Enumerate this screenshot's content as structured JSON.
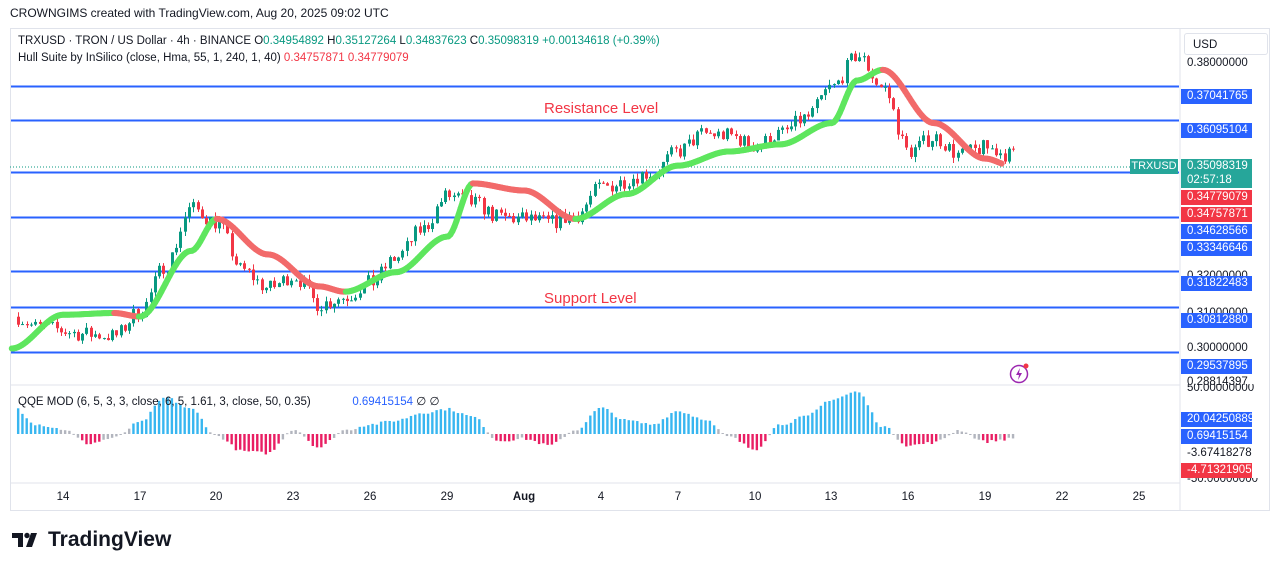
{
  "header": {
    "text": "CROWNGIMS created with TradingView.com, Aug 20, 2025 09:02 UTC"
  },
  "legend": {
    "symbol": "TRXUSD · TRON / US Dollar · 4h · BINANCE",
    "o_label": "O",
    "o": "0.34954892",
    "h_label": "H",
    "h": "0.35127264",
    "l_label": "L",
    "l": "0.34837623",
    "c_label": "C",
    "c": "0.35098319",
    "change": "+0.00134618 (+0.39%)",
    "indicator": "Hull Suite by InSilico (close, Hma, 55, 1, 240, 1, 40)",
    "ind_v1": "0.34757871",
    "ind_v2": "0.34779079",
    "qqe": "QQE MOD (6, 5, 3, 3, close, 6, 5, 1.61, 3, close, 50, 0.35)",
    "qqe_v": "0.69415154",
    "qqe_sym": "∅  ∅"
  },
  "currency": "USD",
  "annotations": {
    "resistance": "Resistance Level",
    "support": "Support Level"
  },
  "symbol_tag": "TRXUSD",
  "colors": {
    "bull": "#089981",
    "bear": "#f23645",
    "level": "#2962ff",
    "hull_up": "#5ee65e",
    "hull_down": "#f26a6a",
    "qqe_blue": "#38b6f0",
    "qqe_grey": "#b2b5be",
    "qqe_pink": "#e91e63"
  },
  "axis": {
    "scale_labels": [
      "0.38000000",
      "0.30000000"
    ],
    "partial_labels": [
      "0.32000000",
      "0.31000000",
      "0.28814397"
    ],
    "level_tags": [
      "0.37041765",
      "0.36095104",
      "0.34628566",
      "0.33346646",
      "0.31822483",
      "0.30812880",
      "0.29537895"
    ],
    "price_tag": "0.35098319",
    "countdown": "02:57:18",
    "hull_tag_1": "0.34779079",
    "hull_tag_2": "0.34757871",
    "osc_top": "50.00000000",
    "osc_tags": [
      "20.04250889",
      "0.69415154",
      "-3.67418278",
      "-4.71321905"
    ],
    "osc_bottom": "-50.00000000",
    "x_labels": [
      "14",
      "17",
      "20",
      "23",
      "26",
      "29",
      "Aug",
      "4",
      "7",
      "10",
      "13",
      "16",
      "19",
      "22",
      "25"
    ]
  },
  "footer": {
    "brand": "TradingView"
  },
  "chart_data": {
    "type": "candlestick",
    "title": "TRXUSD · TRON / US Dollar · 4h · BINANCE",
    "ylim": [
      0.2865,
      0.3865
    ],
    "levels": [
      0.37041765,
      0.36095104,
      0.34628566,
      0.33346646,
      0.31822483,
      0.3081288,
      0.29537895
    ],
    "last_price": 0.35098319,
    "close_anchors": [
      {
        "x": "Jul 12",
        "close": 0.306
      },
      {
        "x": "Jul 13",
        "close": 0.3025
      },
      {
        "x": "Jul 15",
        "close": 0.3005
      },
      {
        "x": "Jul 16",
        "close": 0.3
      },
      {
        "x": "Jul 17",
        "close": 0.307
      },
      {
        "x": "Jul 18",
        "close": 0.32
      },
      {
        "x": "Jul 19",
        "close": 0.336
      },
      {
        "x": "Jul 20",
        "close": 0.332
      },
      {
        "x": "Jul 21",
        "close": 0.3185
      },
      {
        "x": "Jul 22",
        "close": 0.3135
      },
      {
        "x": "Jul 23",
        "close": 0.317
      },
      {
        "x": "Jul 24",
        "close": 0.309
      },
      {
        "x": "Jul 25",
        "close": 0.311
      },
      {
        "x": "Jul 26",
        "close": 0.315
      },
      {
        "x": "Jul 27",
        "close": 0.322
      },
      {
        "x": "Jul 28",
        "close": 0.33
      },
      {
        "x": "Jul 29",
        "close": 0.3395
      },
      {
        "x": "Jul 30",
        "close": 0.3375
      },
      {
        "x": "Jul 31",
        "close": 0.3335
      },
      {
        "x": "Aug 1",
        "close": 0.333
      },
      {
        "x": "Aug 2",
        "close": 0.332
      },
      {
        "x": "Aug 3",
        "close": 0.334
      },
      {
        "x": "Aug 4",
        "close": 0.342
      },
      {
        "x": "Aug 6",
        "close": 0.346
      },
      {
        "x": "Aug 7",
        "close": 0.352
      },
      {
        "x": "Aug 8",
        "close": 0.357
      },
      {
        "x": "Aug 9",
        "close": 0.3565
      },
      {
        "x": "Aug 10",
        "close": 0.3535
      },
      {
        "x": "Aug 11",
        "close": 0.357
      },
      {
        "x": "Aug 12",
        "close": 0.3615
      },
      {
        "x": "Aug 13",
        "close": 0.37
      },
      {
        "x": "Aug 14",
        "close": 0.379
      },
      {
        "x": "Aug 15",
        "close": 0.37
      },
      {
        "x": "Aug 16",
        "close": 0.352
      },
      {
        "x": "Aug 17",
        "close": 0.356
      },
      {
        "x": "Aug 18",
        "close": 0.351
      },
      {
        "x": "Aug 19",
        "close": 0.353
      },
      {
        "x": "Aug 20",
        "close": 0.351
      }
    ],
    "hull_anchors": [
      {
        "x": "Jul 12",
        "value": 0.2965
      },
      {
        "x": "Jul 14",
        "value": 0.306
      },
      {
        "x": "Jul 16",
        "value": 0.3065
      },
      {
        "x": "Jul 17",
        "value": 0.3055
      },
      {
        "x": "Jul 19",
        "value": 0.324
      },
      {
        "x": "Jul 20",
        "value": 0.333
      },
      {
        "x": "Jul 22",
        "value": 0.323
      },
      {
        "x": "Jul 24",
        "value": 0.314
      },
      {
        "x": "Jul 25",
        "value": 0.3125
      },
      {
        "x": "Jul 27",
        "value": 0.318
      },
      {
        "x": "Jul 29",
        "value": 0.328
      },
      {
        "x": "Jul 30",
        "value": 0.343
      },
      {
        "x": "Aug 1",
        "value": 0.341
      },
      {
        "x": "Aug 3",
        "value": 0.333
      },
      {
        "x": "Aug 5",
        "value": 0.34
      },
      {
        "x": "Aug 7",
        "value": 0.348
      },
      {
        "x": "Aug 9",
        "value": 0.352
      },
      {
        "x": "Aug 11",
        "value": 0.354
      },
      {
        "x": "Aug 13",
        "value": 0.36
      },
      {
        "x": "Aug 14",
        "value": 0.372
      },
      {
        "x": "Aug 15",
        "value": 0.375
      },
      {
        "x": "Aug 17",
        "value": 0.36
      },
      {
        "x": "Aug 19",
        "value": 0.35
      },
      {
        "x": "Aug 20",
        "value": 0.348
      }
    ],
    "osc_ylim": [
      -50,
      50
    ],
    "osc_anchors": [
      {
        "x": "Jul 12",
        "value": 30
      },
      {
        "x": "Jul 13",
        "value": 10
      },
      {
        "x": "Jul 14",
        "value": 5
      },
      {
        "x": "Jul 15",
        "value": -10
      },
      {
        "x": "Jul 16",
        "value": -4
      },
      {
        "x": "Jul 17",
        "value": 12
      },
      {
        "x": "Jul 18",
        "value": 38
      },
      {
        "x": "Jul 19",
        "value": 26
      },
      {
        "x": "Jul 20",
        "value": -2
      },
      {
        "x": "Jul 21",
        "value": -18
      },
      {
        "x": "Jul 22",
        "value": -20
      },
      {
        "x": "Jul 23",
        "value": 5
      },
      {
        "x": "Jul 24",
        "value": -14
      },
      {
        "x": "Jul 25",
        "value": 4
      },
      {
        "x": "Jul 26",
        "value": 10
      },
      {
        "x": "Jul 27",
        "value": 14
      },
      {
        "x": "Jul 28",
        "value": 22
      },
      {
        "x": "Jul 29",
        "value": 26
      },
      {
        "x": "Jul 30",
        "value": 18
      },
      {
        "x": "Jul 31",
        "value": -7
      },
      {
        "x": "Aug 1",
        "value": -5
      },
      {
        "x": "Aug 2",
        "value": -12
      },
      {
        "x": "Aug 3",
        "value": 4
      },
      {
        "x": "Aug 4",
        "value": 27
      },
      {
        "x": "Aug 5",
        "value": 14
      },
      {
        "x": "Aug 6",
        "value": 10
      },
      {
        "x": "Aug 7",
        "value": 24
      },
      {
        "x": "Aug 8",
        "value": 16
      },
      {
        "x": "Aug 9",
        "value": -3
      },
      {
        "x": "Aug 10",
        "value": -16
      },
      {
        "x": "Aug 11",
        "value": 10
      },
      {
        "x": "Aug 12",
        "value": 18
      },
      {
        "x": "Aug 13",
        "value": 36
      },
      {
        "x": "Aug 14",
        "value": 44
      },
      {
        "x": "Aug 15",
        "value": 8
      },
      {
        "x": "Aug 16",
        "value": -12
      },
      {
        "x": "Aug 17",
        "value": -9
      },
      {
        "x": "Aug 18",
        "value": 4
      },
      {
        "x": "Aug 19",
        "value": -8
      },
      {
        "x": "Aug 20",
        "value": -5
      }
    ]
  }
}
